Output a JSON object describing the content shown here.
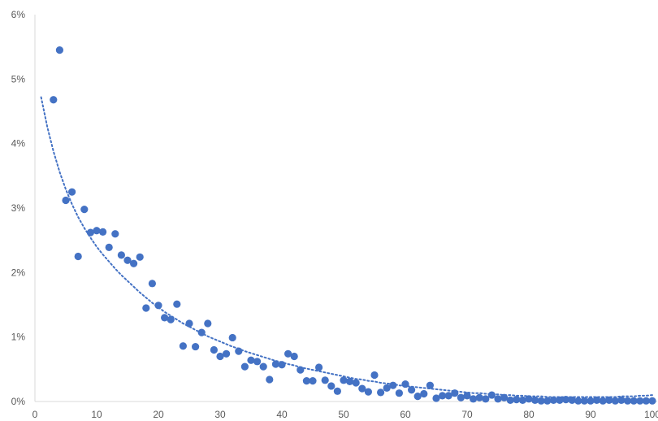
{
  "chart_data": {
    "type": "scatter",
    "title": "",
    "xlabel": "",
    "ylabel": "",
    "xlim": [
      0,
      100
    ],
    "ylim": [
      0,
      0.06
    ],
    "x_ticks": [
      0,
      10,
      20,
      30,
      40,
      50,
      60,
      70,
      80,
      90,
      100
    ],
    "x_tick_labels": [
      "0",
      "10",
      "20",
      "30",
      "40",
      "50",
      "60",
      "70",
      "80",
      "90",
      "100"
    ],
    "y_ticks": [
      0,
      0.01,
      0.02,
      0.03,
      0.04,
      0.05,
      0.06
    ],
    "y_tick_labels": [
      "0%",
      "1%",
      "2%",
      "3%",
      "4%",
      "5%",
      "6%"
    ],
    "grid": false,
    "legend": "none",
    "colors": {
      "marker": "#4472C4",
      "trendline": "#4472C4",
      "axis": "#d9d9d9",
      "tick_text": "#595959"
    },
    "series": [
      {
        "x": [
          3,
          4,
          5,
          6,
          7,
          8,
          9,
          10,
          11,
          12,
          13,
          14,
          15,
          16,
          17,
          18,
          19,
          20,
          21,
          22,
          23,
          24,
          25,
          26,
          27,
          28,
          29,
          30,
          31,
          32,
          33,
          34,
          35,
          36,
          37,
          38,
          39,
          40,
          41,
          42,
          43,
          44,
          45,
          46,
          47,
          48,
          49,
          50,
          51,
          52,
          53,
          54,
          55,
          56,
          57,
          58,
          59,
          60,
          61,
          62,
          63,
          64,
          65,
          66,
          67,
          68,
          69,
          70,
          71,
          72,
          73,
          74,
          75,
          76,
          77,
          78,
          79,
          80,
          81,
          82,
          83,
          84,
          85,
          86,
          87,
          88,
          89,
          90,
          91,
          92,
          93,
          94,
          95,
          96,
          97,
          98,
          99,
          100
        ],
        "y": [
          0.0468,
          0.0545,
          0.0312,
          0.0325,
          0.0225,
          0.0298,
          0.0262,
          0.0265,
          0.0263,
          0.0239,
          0.026,
          0.0227,
          0.0219,
          0.0214,
          0.0224,
          0.0145,
          0.0183,
          0.0149,
          0.013,
          0.0127,
          0.0151,
          0.0086,
          0.0121,
          0.0085,
          0.0107,
          0.0121,
          0.008,
          0.007,
          0.0074,
          0.0099,
          0.0078,
          0.0054,
          0.0064,
          0.0062,
          0.0054,
          0.0034,
          0.0058,
          0.0057,
          0.0074,
          0.007,
          0.0049,
          0.0032,
          0.0032,
          0.0053,
          0.0033,
          0.0024,
          0.0016,
          0.0033,
          0.0031,
          0.0029,
          0.002,
          0.0015,
          0.0041,
          0.0014,
          0.0021,
          0.0025,
          0.0013,
          0.0027,
          0.0018,
          0.0008,
          0.0012,
          0.0025,
          0.0005,
          0.0009,
          0.0009,
          0.0013,
          0.0006,
          0.0009,
          0.0004,
          0.0006,
          0.0004,
          0.001,
          0.0004,
          0.0006,
          0.0002,
          0.0003,
          0.0002,
          0.0004,
          0.0002,
          0.0001,
          0.0001,
          0.0002,
          0.0002,
          0.0003,
          0.0002,
          0.0001,
          0.0001,
          0.0001,
          0.0002,
          0.0001,
          0.0002,
          0.0001,
          0.0002,
          0.0001,
          0.0001,
          0.0001,
          0.0001,
          0.0001
        ]
      }
    ],
    "trendline": {
      "type": "exponential",
      "style": "dotted",
      "x": [
        1,
        2,
        3,
        4,
        5,
        6,
        7,
        8,
        9,
        10,
        11,
        12,
        13,
        14,
        15,
        16,
        17,
        18,
        19,
        20,
        21,
        22,
        23,
        24,
        25,
        26,
        27,
        28,
        29,
        30,
        31,
        32,
        33,
        34,
        35,
        36,
        37,
        38,
        39,
        40,
        41,
        42,
        43,
        44,
        45,
        46,
        47,
        48,
        49,
        50,
        51,
        52,
        53,
        54,
        55,
        56,
        57,
        58,
        59,
        60,
        61,
        62,
        63,
        64,
        65,
        66,
        67,
        68,
        69,
        70,
        71,
        72,
        73,
        74,
        75,
        76,
        77,
        78,
        79,
        80,
        81,
        82,
        83,
        84,
        85,
        86,
        87,
        88,
        89,
        90,
        91,
        92,
        93,
        94,
        95,
        96,
        97,
        98,
        99,
        100
      ],
      "y": [
        0.0472,
        0.0426,
        0.0388,
        0.0356,
        0.0329,
        0.0306,
        0.0286,
        0.0269,
        0.0254,
        0.024,
        0.0228,
        0.0217,
        0.0206,
        0.0196,
        0.0187,
        0.0178,
        0.0169,
        0.0161,
        0.0153,
        0.0146,
        0.0139,
        0.0133,
        0.0127,
        0.0121,
        0.0116,
        0.0111,
        0.0106,
        0.0101,
        0.0097,
        0.0093,
        0.0089,
        0.0085,
        0.0082,
        0.0078,
        0.0075,
        0.0072,
        0.0069,
        0.0066,
        0.0063,
        0.0061,
        0.0058,
        0.0056,
        0.0053,
        0.0051,
        0.0049,
        0.0047,
        0.0045,
        0.0043,
        0.0041,
        0.0039,
        0.0037,
        0.0035,
        0.0034,
        0.0032,
        0.0031,
        0.0029,
        0.0028,
        0.0027,
        0.0025,
        0.0024,
        0.0023,
        0.0022,
        0.0021,
        0.002,
        0.0019,
        0.0018,
        0.0017,
        0.0016,
        0.0015,
        0.0014,
        0.0013,
        0.0013,
        0.0012,
        0.0011,
        0.0011,
        0.001,
        0.001,
        0.0009,
        0.0009,
        0.0008,
        0.0008,
        0.0008,
        0.0007,
        0.0007,
        0.0007,
        0.0007,
        0.0007,
        0.0007,
        0.0007,
        0.0007,
        0.0007,
        0.0007,
        0.0007,
        0.0007,
        0.0008,
        0.0008,
        0.0008,
        0.0009,
        0.0009,
        0.001
      ]
    }
  }
}
